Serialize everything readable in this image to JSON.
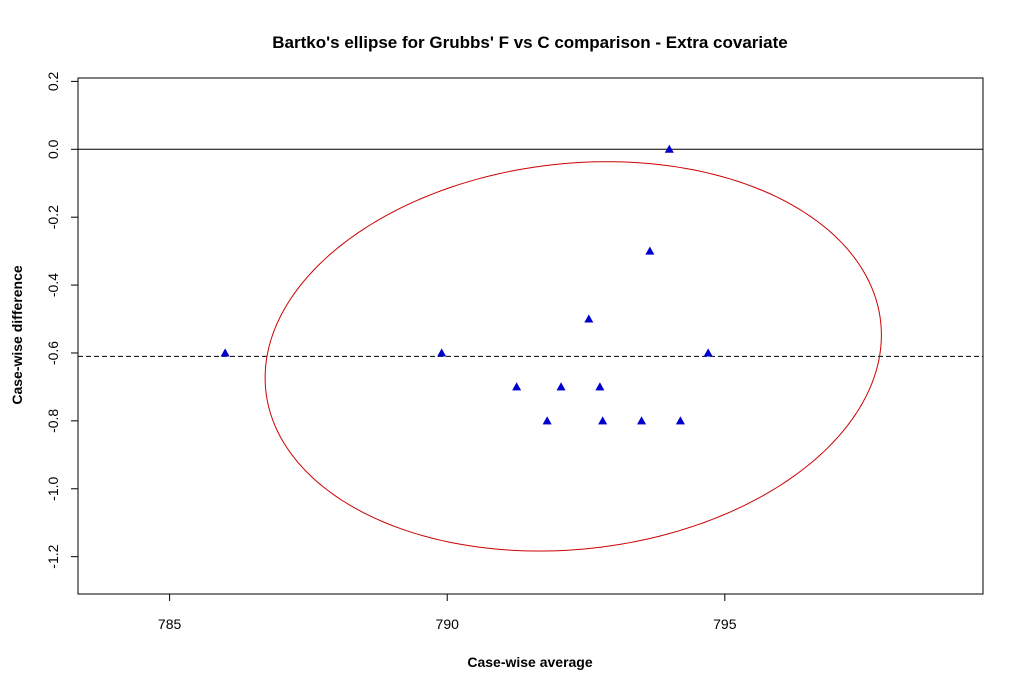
{
  "chart_data": {
    "type": "scatter",
    "title": "Bartko's ellipse for Grubbs' F vs C comparison - Extra covariate",
    "xlabel": "Case-wise average",
    "ylabel": "Case-wise difference",
    "xlim": [
      783.35,
      799.65
    ],
    "ylim": [
      -1.31,
      0.21
    ],
    "x_ticks": [
      785,
      790,
      795
    ],
    "x_tick_labels": [
      "785",
      "790",
      "795"
    ],
    "y_ticks": [
      0.2,
      0.0,
      -0.2,
      -0.4,
      -0.6,
      -0.8,
      -1.0,
      -1.2
    ],
    "y_tick_labels": [
      "0.2",
      "0.0",
      "-0.2",
      "-0.4",
      "-0.6",
      "-0.8",
      "-1.0",
      "-1.2"
    ],
    "grid": false,
    "points": [
      {
        "x": 786.0,
        "y": -0.6
      },
      {
        "x": 789.9,
        "y": -0.6
      },
      {
        "x": 791.25,
        "y": -0.7
      },
      {
        "x": 791.8,
        "y": -0.8
      },
      {
        "x": 792.05,
        "y": -0.7
      },
      {
        "x": 792.55,
        "y": -0.5
      },
      {
        "x": 792.75,
        "y": -0.7
      },
      {
        "x": 792.8,
        "y": -0.8
      },
      {
        "x": 793.5,
        "y": -0.8
      },
      {
        "x": 793.65,
        "y": -0.3
      },
      {
        "x": 794.0,
        "y": 0.0
      },
      {
        "x": 794.2,
        "y": -0.8
      },
      {
        "x": 794.7,
        "y": -0.6
      }
    ],
    "reference_lines": [
      {
        "y": 0.0,
        "style": "solid"
      },
      {
        "y": -0.61,
        "style": "dashed"
      }
    ],
    "ellipse": {
      "center": [
        792.27,
        -0.61
      ],
      "semi_axis_x": 5.55,
      "semi_axis_y": 0.57,
      "covariance": 0.063
    },
    "colors": {
      "points": "#0000cc",
      "ellipse": "#cc0000",
      "lines": "#000000"
    }
  }
}
